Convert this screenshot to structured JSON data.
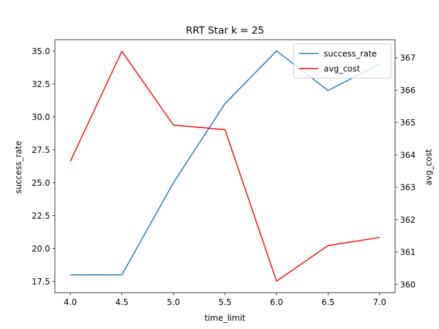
{
  "chart_data": {
    "type": "line",
    "title": "RRT Star k = 25",
    "xlabel": "time_limit",
    "ylabel_left": "success_rate",
    "ylabel_right": "avg_cost",
    "x": [
      4.0,
      4.5,
      5.0,
      5.5,
      6.0,
      6.5,
      7.0
    ],
    "xticks": [
      "4.0",
      "4.5",
      "5.0",
      "5.5",
      "6.0",
      "6.5",
      "7.0"
    ],
    "xlim": [
      3.85,
      7.15
    ],
    "ylim_left": [
      16.65,
      35.85
    ],
    "yticks_left": [
      "17.5",
      "20.0",
      "22.5",
      "25.0",
      "27.5",
      "30.0",
      "32.5",
      "35.0"
    ],
    "ylim_right": [
      359.745,
      367.555
    ],
    "yticks_right": [
      "360",
      "361",
      "362",
      "363",
      "364",
      "365",
      "366",
      "367"
    ],
    "series": [
      {
        "name": "success_rate",
        "axis": "left",
        "color": "#1f77b4",
        "values": [
          18,
          18,
          25,
          31,
          35,
          32,
          34
        ]
      },
      {
        "name": "avg_cost",
        "axis": "right",
        "color": "#ff0000",
        "values": [
          363.8,
          367.2,
          364.92,
          364.78,
          360.1,
          361.2,
          361.45
        ]
      }
    ],
    "legend": {
      "placement": "top-right"
    },
    "grid": false
  }
}
